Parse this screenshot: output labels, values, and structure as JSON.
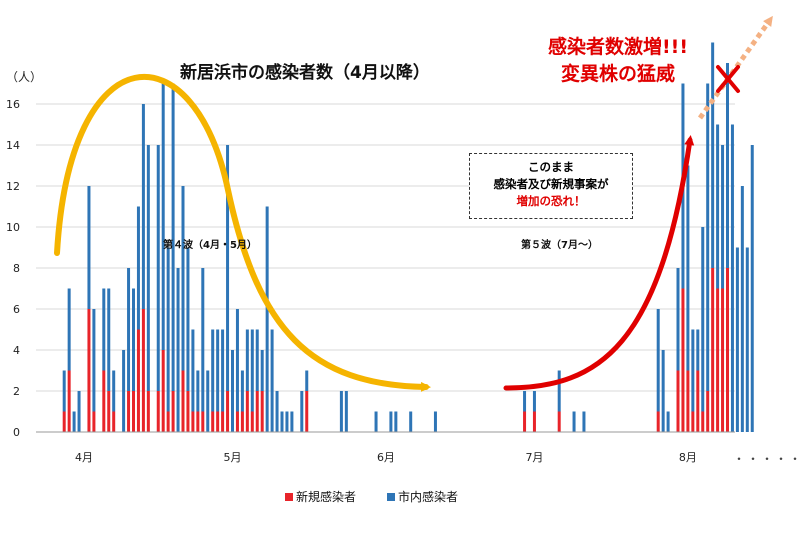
{
  "title": "新居浜市の感染者数（4月以降）",
  "unit_label": "（人）",
  "wave4_label": "第４波（4月・5月）",
  "wave5_label": "第５波（7月～）",
  "surge_line1": "感染者数激増!!!",
  "surge_line2": "変異株の猛威",
  "warning": {
    "line1": "このまま",
    "line2": "感染者及び新規事案が",
    "line3": "増加の恐れ！"
  },
  "legend": {
    "new": "新規感染者",
    "city": "市内感染者"
  },
  "ellipsis": "・・・・・",
  "colors": {
    "new": "#e8242a",
    "city": "#2e75b6",
    "wave4_arrow": "#f5b400",
    "wave5_arrow": "#e00000",
    "forecast_arrow": "#f4b183",
    "cross": "#e00000"
  },
  "chart_data": {
    "type": "bar",
    "stacked": true,
    "x_type": "date",
    "ylim": [
      0,
      16
    ],
    "yticks": [
      0,
      2,
      4,
      6,
      8,
      10,
      12,
      14,
      16
    ],
    "xtick_labels": [
      "4月",
      "5月",
      "6月",
      "7月",
      "8月"
    ],
    "series": [
      {
        "name": "新規感染者",
        "values": [
          {
            "date": "2021-03-28",
            "v": 1
          },
          {
            "date": "2021-03-29",
            "v": 3
          },
          {
            "date": "2021-04-02",
            "v": 6
          },
          {
            "date": "2021-04-03",
            "v": 1
          },
          {
            "date": "2021-04-05",
            "v": 3
          },
          {
            "date": "2021-04-06",
            "v": 2
          },
          {
            "date": "2021-04-07",
            "v": 1
          },
          {
            "date": "2021-04-10",
            "v": 2
          },
          {
            "date": "2021-04-11",
            "v": 2
          },
          {
            "date": "2021-04-12",
            "v": 5
          },
          {
            "date": "2021-04-13",
            "v": 6
          },
          {
            "date": "2021-04-14",
            "v": 2
          },
          {
            "date": "2021-04-16",
            "v": 2
          },
          {
            "date": "2021-04-17",
            "v": 4
          },
          {
            "date": "2021-04-18",
            "v": 1
          },
          {
            "date": "2021-04-19",
            "v": 2
          },
          {
            "date": "2021-04-21",
            "v": 3
          },
          {
            "date": "2021-04-22",
            "v": 2
          },
          {
            "date": "2021-04-23",
            "v": 1
          },
          {
            "date": "2021-04-24",
            "v": 1
          },
          {
            "date": "2021-04-25",
            "v": 1
          },
          {
            "date": "2021-04-27",
            "v": 1
          },
          {
            "date": "2021-04-28",
            "v": 1
          },
          {
            "date": "2021-04-29",
            "v": 1
          },
          {
            "date": "2021-04-30",
            "v": 2
          },
          {
            "date": "2021-05-02",
            "v": 1
          },
          {
            "date": "2021-05-03",
            "v": 1
          },
          {
            "date": "2021-05-04",
            "v": 2
          },
          {
            "date": "2021-05-05",
            "v": 1
          },
          {
            "date": "2021-05-06",
            "v": 2
          },
          {
            "date": "2021-05-07",
            "v": 2
          },
          {
            "date": "2021-05-16",
            "v": 2
          },
          {
            "date": "2021-06-29",
            "v": 1
          },
          {
            "date": "2021-07-01",
            "v": 1
          },
          {
            "date": "2021-07-06",
            "v": 1
          },
          {
            "date": "2021-07-26",
            "v": 1
          },
          {
            "date": "2021-07-30",
            "v": 3
          },
          {
            "date": "2021-07-31",
            "v": 7
          },
          {
            "date": "2021-08-01",
            "v": 3
          },
          {
            "date": "2021-08-02",
            "v": 1
          },
          {
            "date": "2021-08-03",
            "v": 3
          },
          {
            "date": "2021-08-04",
            "v": 1
          },
          {
            "date": "2021-08-05",
            "v": 2
          },
          {
            "date": "2021-08-06",
            "v": 8
          },
          {
            "date": "2021-08-07",
            "v": 7
          },
          {
            "date": "2021-08-08",
            "v": 7
          },
          {
            "date": "2021-08-09",
            "v": 8
          }
        ]
      },
      {
        "name": "市内感染者",
        "values": [
          {
            "date": "2021-03-28",
            "v": 2
          },
          {
            "date": "2021-03-29",
            "v": 4
          },
          {
            "date": "2021-03-30",
            "v": 1
          },
          {
            "date": "2021-03-31",
            "v": 2
          },
          {
            "date": "2021-04-02",
            "v": 6
          },
          {
            "date": "2021-04-03",
            "v": 5
          },
          {
            "date": "2021-04-05",
            "v": 4
          },
          {
            "date": "2021-04-06",
            "v": 5
          },
          {
            "date": "2021-04-07",
            "v": 2
          },
          {
            "date": "2021-04-09",
            "v": 4
          },
          {
            "date": "2021-04-10",
            "v": 6
          },
          {
            "date": "2021-04-11",
            "v": 5
          },
          {
            "date": "2021-04-12",
            "v": 6
          },
          {
            "date": "2021-04-13",
            "v": 10
          },
          {
            "date": "2021-04-14",
            "v": 12
          },
          {
            "date": "2021-04-16",
            "v": 12
          },
          {
            "date": "2021-04-17",
            "v": 13
          },
          {
            "date": "2021-04-18",
            "v": 8
          },
          {
            "date": "2021-04-19",
            "v": 15
          },
          {
            "date": "2021-04-20",
            "v": 8
          },
          {
            "date": "2021-04-21",
            "v": 9
          },
          {
            "date": "2021-04-22",
            "v": 7
          },
          {
            "date": "2021-04-23",
            "v": 4
          },
          {
            "date": "2021-04-24",
            "v": 2
          },
          {
            "date": "2021-04-25",
            "v": 7
          },
          {
            "date": "2021-04-26",
            "v": 3
          },
          {
            "date": "2021-04-27",
            "v": 4
          },
          {
            "date": "2021-04-28",
            "v": 4
          },
          {
            "date": "2021-04-29",
            "v": 4
          },
          {
            "date": "2021-04-30",
            "v": 12
          },
          {
            "date": "2021-05-01",
            "v": 4
          },
          {
            "date": "2021-05-02",
            "v": 5
          },
          {
            "date": "2021-05-03",
            "v": 2
          },
          {
            "date": "2021-05-04",
            "v": 3
          },
          {
            "date": "2021-05-05",
            "v": 4
          },
          {
            "date": "2021-05-06",
            "v": 3
          },
          {
            "date": "2021-05-07",
            "v": 2
          },
          {
            "date": "2021-05-08",
            "v": 11
          },
          {
            "date": "2021-05-09",
            "v": 5
          },
          {
            "date": "2021-05-10",
            "v": 2
          },
          {
            "date": "2021-05-11",
            "v": 1
          },
          {
            "date": "2021-05-12",
            "v": 1
          },
          {
            "date": "2021-05-13",
            "v": 1
          },
          {
            "date": "2021-05-15",
            "v": 2
          },
          {
            "date": "2021-05-16",
            "v": 1
          },
          {
            "date": "2021-05-23",
            "v": 2
          },
          {
            "date": "2021-05-24",
            "v": 2
          },
          {
            "date": "2021-05-30",
            "v": 1
          },
          {
            "date": "2021-06-02",
            "v": 1
          },
          {
            "date": "2021-06-03",
            "v": 1
          },
          {
            "date": "2021-06-06",
            "v": 1
          },
          {
            "date": "2021-06-11",
            "v": 1
          },
          {
            "date": "2021-06-29",
            "v": 1
          },
          {
            "date": "2021-07-01",
            "v": 1
          },
          {
            "date": "2021-07-06",
            "v": 2
          },
          {
            "date": "2021-07-09",
            "v": 1
          },
          {
            "date": "2021-07-11",
            "v": 1
          },
          {
            "date": "2021-07-26",
            "v": 5
          },
          {
            "date": "2021-07-27",
            "v": 4
          },
          {
            "date": "2021-07-28",
            "v": 1
          },
          {
            "date": "2021-07-30",
            "v": 5
          },
          {
            "date": "2021-07-31",
            "v": 10
          },
          {
            "date": "2021-08-01",
            "v": 10
          },
          {
            "date": "2021-08-02",
            "v": 4
          },
          {
            "date": "2021-08-03",
            "v": 2
          },
          {
            "date": "2021-08-04",
            "v": 9
          },
          {
            "date": "2021-08-05",
            "v": 15
          },
          {
            "date": "2021-08-06",
            "v": 11
          },
          {
            "date": "2021-08-07",
            "v": 8
          },
          {
            "date": "2021-08-08",
            "v": 7
          },
          {
            "date": "2021-08-09",
            "v": 10
          },
          {
            "date": "2021-08-10",
            "v": 15
          },
          {
            "date": "2021-08-11",
            "v": 9
          },
          {
            "date": "2021-08-12",
            "v": 12
          },
          {
            "date": "2021-08-13",
            "v": 9
          },
          {
            "date": "2021-08-14",
            "v": 14
          }
        ]
      }
    ]
  }
}
